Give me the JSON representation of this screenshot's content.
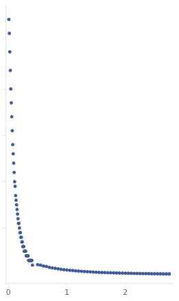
{
  "chart_data": {
    "type": "scatter",
    "x": [
      0.008,
      0.016,
      0.024,
      0.033,
      0.041,
      0.049,
      0.057,
      0.065,
      0.074,
      0.082,
      0.09,
      0.098,
      0.106,
      0.115,
      0.123,
      0.131,
      0.139,
      0.148,
      0.156,
      0.164,
      0.172,
      0.18,
      0.189,
      0.197,
      0.205,
      0.213,
      0.222,
      0.23,
      0.238,
      0.246,
      0.254,
      0.263,
      0.271,
      0.279,
      0.287,
      0.296,
      0.304,
      0.312,
      0.32,
      0.328,
      0.337,
      0.345,
      0.353,
      0.361,
      0.37,
      0.378,
      0.386,
      0.394,
      0.402,
      0.411,
      0.5,
      0.55,
      0.6,
      0.65,
      0.7,
      0.75,
      0.8,
      0.85,
      0.9,
      0.95,
      1.0,
      1.05,
      1.1,
      1.15,
      1.2,
      1.25,
      1.3,
      1.35,
      1.4,
      1.45,
      1.5,
      1.55,
      1.6,
      1.65,
      1.7,
      1.75,
      1.8,
      1.85,
      1.9,
      1.95,
      2.0,
      2.05,
      2.1,
      2.15,
      2.2,
      2.25,
      2.3,
      2.35,
      2.4,
      2.45,
      2.5,
      2.55,
      2.6,
      2.65,
      2.7,
      2.75
    ],
    "values": [
      0.055,
      0.052,
      0.048,
      0.044,
      0.04,
      0.037,
      0.034,
      0.031,
      0.028,
      0.026,
      0.024,
      0.022,
      0.02,
      0.019,
      0.017,
      0.016,
      0.015,
      0.014,
      0.013,
      0.012,
      0.011,
      0.011,
      0.01,
      0.009,
      0.009,
      0.008,
      0.008,
      0.007,
      0.007,
      0.006,
      0.006,
      0.006,
      0.005,
      0.005,
      0.005,
      0.005,
      0.004,
      0.004,
      0.004,
      0.004,
      0.004,
      0.003,
      0.003,
      0.003,
      0.003,
      0.003,
      0.003,
      0.003,
      0.003,
      0.002,
      0.0021,
      0.002,
      0.0018,
      0.0017,
      0.0015,
      0.0014,
      0.0013,
      0.0012,
      0.0011,
      0.001,
      0.00095,
      0.00088,
      0.00082,
      0.00076,
      0.00071,
      0.00066,
      0.00062,
      0.00058,
      0.00054,
      0.0005,
      0.00047,
      0.00044,
      0.00041,
      0.00038,
      0.00036,
      0.00034,
      0.00032,
      0.0003,
      0.00028,
      0.00026,
      0.00025,
      0.00023,
      0.00022,
      0.0002,
      0.00019,
      0.00018,
      0.00017,
      0.00016,
      0.00015,
      0.00014,
      0.00013,
      0.00012,
      0.00011,
      0.0001,
      9.5e-05,
      9e-05
    ],
    "yerr": [
      0.0,
      0.0,
      0.0,
      0.0,
      0.0,
      0.0,
      0.0,
      0.0,
      0.0,
      0.0,
      0.0,
      0.0,
      0.0,
      0.0,
      0.0,
      0.0,
      0.0,
      0.0,
      0.0,
      0.0,
      0.0,
      0.0,
      0.0,
      0.0,
      0.0,
      0.0,
      0.0,
      0.0,
      0.0,
      0.0,
      0.0,
      0.0,
      0.0,
      0.0,
      0.0,
      0.0,
      0.0,
      0.0,
      0.0,
      0.0,
      0.0,
      0.0,
      0.0,
      0.0,
      0.0,
      0.0,
      0.0,
      0.0,
      0.0,
      0.0,
      0.0001,
      0.0001,
      0.0001,
      0.0001,
      0.0001,
      8e-05,
      8e-05,
      8e-05,
      8e-05,
      7e-05,
      8e-05,
      8e-05,
      8e-05,
      8e-05,
      8e-05,
      8e-05,
      8e-05,
      8e-05,
      9e-05,
      9e-05,
      9e-05,
      0.0001,
      0.0001,
      0.0001,
      0.0001,
      0.00011,
      0.00011,
      0.00012,
      0.00012,
      0.00012,
      0.00013,
      0.00013,
      0.00014,
      0.00015,
      0.00015,
      0.00016,
      0.00017,
      0.00018,
      0.00019,
      0.00019,
      0.0002,
      0.00022,
      0.00023,
      0.00025,
      0.00026,
      0.00028
    ],
    "color": "#3d5a9e",
    "marker": "circle",
    "xlim": [
      -0.05,
      2.8
    ],
    "xticks": [
      0,
      1,
      2
    ],
    "ylim": [
      -0.002,
      0.058
    ],
    "yticks": [
      0.01,
      0.02,
      0.03,
      0.04
    ],
    "grid": false,
    "tick_labels": "x"
  }
}
